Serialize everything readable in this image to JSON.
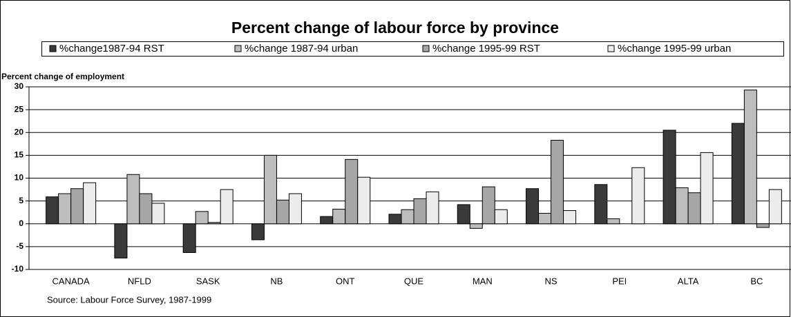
{
  "chart_data": {
    "type": "bar",
    "title": "Percent change of labour force by province",
    "y_label": "Percent change of employment",
    "source": "Source: Labour Force Survey, 1987-1999",
    "categories": [
      "CANADA",
      "NFLD",
      "SASK",
      "NB",
      "ONT",
      "QUE",
      "MAN",
      "NS",
      "PEI",
      "ALTA",
      "BC"
    ],
    "series": [
      {
        "name": "%change1987-94 RST",
        "color": "#3a3a3a",
        "values": [
          5.9,
          -7.5,
          -6.3,
          -3.5,
          1.6,
          2.1,
          4.2,
          7.7,
          8.6,
          20.5,
          22
        ]
      },
      {
        "name": "%change 1987-94 urban",
        "color": "#bdbdbd",
        "values": [
          6.6,
          10.8,
          2.7,
          15,
          3.2,
          3.1,
          -1,
          2.3,
          1.1,
          7.9,
          29.3
        ]
      },
      {
        "name": "%change 1995-99 RST",
        "color": "#a6a6a6",
        "values": [
          7.7,
          6.6,
          0.3,
          5.2,
          14.1,
          5.5,
          8.1,
          18.3,
          null,
          6.8,
          -0.8
        ]
      },
      {
        "name": "%change 1995-99 urban",
        "color": "#ececec",
        "values": [
          9,
          4.5,
          7.5,
          6.6,
          10.2,
          7,
          3.1,
          2.9,
          12.3,
          15.6,
          7.5
        ]
      }
    ],
    "ylim": [
      -10,
      30
    ],
    "yticks": [
      -10,
      -5,
      0,
      5,
      10,
      15,
      20,
      25,
      30
    ],
    "grid": true,
    "legend": "top"
  }
}
